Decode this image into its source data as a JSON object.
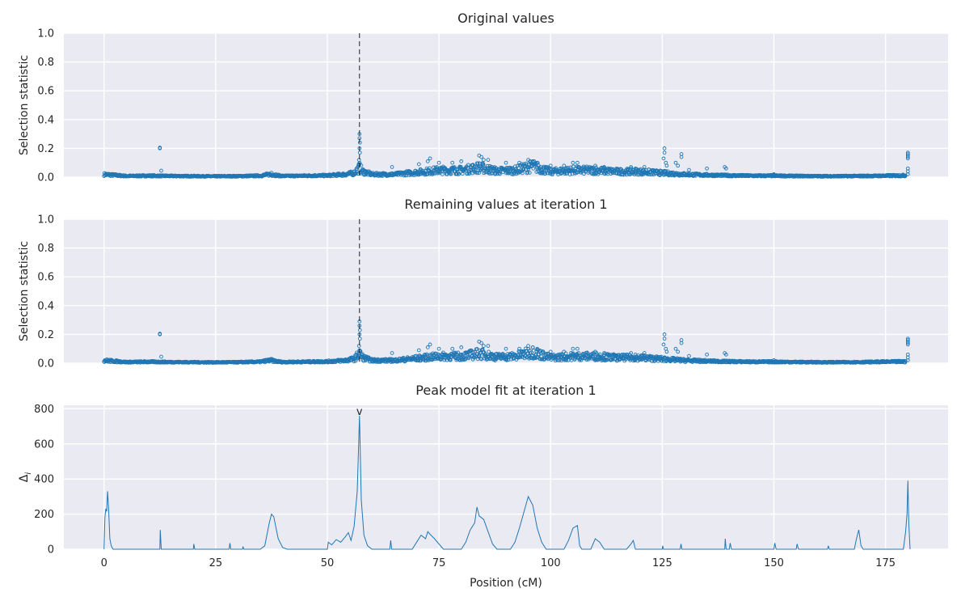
{
  "chart_data": [
    {
      "type": "scatter",
      "title": "Original values",
      "ylabel": "Selection statistic",
      "xlabel": "",
      "xlim": [
        -9,
        189
      ],
      "ylim": [
        0,
        1.0
      ],
      "yticks": [
        "0.0",
        "0.2",
        "0.4",
        "0.6",
        "0.8",
        "1.0"
      ],
      "xticks": [
        "0",
        "25",
        "50",
        "75",
        "100",
        "125",
        "150",
        "175"
      ],
      "grid": true,
      "marker_color": "#1f77b4",
      "vline_x": 57.2,
      "baseline": [
        [
          0,
          0.02
        ],
        [
          5,
          0.008
        ],
        [
          10,
          0.01
        ],
        [
          15,
          0.008
        ],
        [
          20,
          0.007
        ],
        [
          25,
          0.006
        ],
        [
          30,
          0.007
        ],
        [
          35,
          0.01
        ],
        [
          37,
          0.02
        ],
        [
          40,
          0.008
        ],
        [
          45,
          0.01
        ],
        [
          50,
          0.012
        ],
        [
          54,
          0.02
        ],
        [
          56,
          0.03
        ],
        [
          57.2,
          0.07
        ],
        [
          58,
          0.04
        ],
        [
          60,
          0.02
        ],
        [
          63,
          0.02
        ],
        [
          65,
          0.02
        ],
        [
          70,
          0.035
        ],
        [
          75,
          0.05
        ],
        [
          80,
          0.05
        ],
        [
          84,
          0.07
        ],
        [
          88,
          0.045
        ],
        [
          92,
          0.05
        ],
        [
          96,
          0.08
        ],
        [
          100,
          0.04
        ],
        [
          105,
          0.05
        ],
        [
          110,
          0.05
        ],
        [
          115,
          0.04
        ],
        [
          120,
          0.04
        ],
        [
          125,
          0.03
        ],
        [
          130,
          0.02
        ],
        [
          135,
          0.015
        ],
        [
          140,
          0.012
        ],
        [
          145,
          0.01
        ],
        [
          150,
          0.01
        ],
        [
          155,
          0.008
        ],
        [
          160,
          0.007
        ],
        [
          165,
          0.007
        ],
        [
          170,
          0.008
        ],
        [
          175,
          0.01
        ],
        [
          179.5,
          0.012
        ]
      ],
      "outliers": [
        [
          12.5,
          0.2
        ],
        [
          12.5,
          0.205
        ],
        [
          12.8,
          0.045
        ],
        [
          37.5,
          0.03
        ],
        [
          57.2,
          0.3
        ],
        [
          57.2,
          0.27
        ],
        [
          57.3,
          0.24
        ],
        [
          57.2,
          0.2
        ],
        [
          57.3,
          0.17
        ],
        [
          57.1,
          0.12
        ],
        [
          57.2,
          0.09
        ],
        [
          64.5,
          0.07
        ],
        [
          70.5,
          0.09
        ],
        [
          73,
          0.13
        ],
        [
          72.5,
          0.11
        ],
        [
          75,
          0.1
        ],
        [
          78,
          0.1
        ],
        [
          80,
          0.11
        ],
        [
          84,
          0.15
        ],
        [
          84.5,
          0.14
        ],
        [
          85,
          0.12
        ],
        [
          86,
          0.12
        ],
        [
          90,
          0.1
        ],
        [
          93,
          0.1
        ],
        [
          95,
          0.12
        ],
        [
          96,
          0.11
        ],
        [
          97,
          0.1
        ],
        [
          100,
          0.08
        ],
        [
          103,
          0.08
        ],
        [
          105,
          0.1
        ],
        [
          106,
          0.1
        ],
        [
          110,
          0.08
        ],
        [
          112,
          0.07
        ],
        [
          118,
          0.07
        ],
        [
          119,
          0.06
        ],
        [
          121,
          0.07
        ],
        [
          125.5,
          0.2
        ],
        [
          125.5,
          0.17
        ],
        [
          125.3,
          0.13
        ],
        [
          125.8,
          0.1
        ],
        [
          126,
          0.08
        ],
        [
          128,
          0.1
        ],
        [
          129.3,
          0.16
        ],
        [
          129.3,
          0.14
        ],
        [
          128.5,
          0.08
        ],
        [
          131,
          0.05
        ],
        [
          135,
          0.06
        ],
        [
          139,
          0.07
        ],
        [
          139.3,
          0.06
        ],
        [
          150,
          0.02
        ],
        [
          155,
          0.01
        ],
        [
          180,
          0.17
        ],
        [
          180,
          0.16
        ],
        [
          180,
          0.15
        ],
        [
          180,
          0.14
        ],
        [
          180,
          0.13
        ],
        [
          180,
          0.06
        ],
        [
          180,
          0.04
        ],
        [
          180,
          0.02
        ]
      ]
    },
    {
      "type": "scatter",
      "title": "Remaining values at iteration 1",
      "ylabel": "Selection statistic",
      "xlabel": "",
      "xlim": [
        -9,
        189
      ],
      "ylim": [
        0,
        1.0
      ],
      "yticks": [
        "0.0",
        "0.2",
        "0.4",
        "0.6",
        "0.8",
        "1.0"
      ],
      "xticks": [
        "0",
        "25",
        "50",
        "75",
        "100",
        "125",
        "150",
        "175"
      ],
      "grid": true,
      "marker_color": "#1f77b4",
      "vline_x": 57.2,
      "baseline": [
        [
          0,
          0.02
        ],
        [
          5,
          0.008
        ],
        [
          10,
          0.01
        ],
        [
          15,
          0.008
        ],
        [
          20,
          0.007
        ],
        [
          25,
          0.006
        ],
        [
          30,
          0.007
        ],
        [
          35,
          0.01
        ],
        [
          37,
          0.02
        ],
        [
          40,
          0.008
        ],
        [
          45,
          0.01
        ],
        [
          50,
          0.012
        ],
        [
          54,
          0.02
        ],
        [
          56,
          0.03
        ],
        [
          57.2,
          0.07
        ],
        [
          58,
          0.04
        ],
        [
          60,
          0.02
        ],
        [
          63,
          0.02
        ],
        [
          65,
          0.02
        ],
        [
          70,
          0.035
        ],
        [
          75,
          0.05
        ],
        [
          80,
          0.05
        ],
        [
          84,
          0.07
        ],
        [
          88,
          0.045
        ],
        [
          92,
          0.05
        ],
        [
          96,
          0.08
        ],
        [
          100,
          0.04
        ],
        [
          105,
          0.05
        ],
        [
          110,
          0.05
        ],
        [
          115,
          0.04
        ],
        [
          120,
          0.04
        ],
        [
          125,
          0.03
        ],
        [
          130,
          0.02
        ],
        [
          135,
          0.015
        ],
        [
          140,
          0.012
        ],
        [
          145,
          0.01
        ],
        [
          150,
          0.01
        ],
        [
          155,
          0.008
        ],
        [
          160,
          0.007
        ],
        [
          165,
          0.007
        ],
        [
          170,
          0.008
        ],
        [
          175,
          0.01
        ],
        [
          179.5,
          0.012
        ]
      ],
      "outliers": [
        [
          12.5,
          0.2
        ],
        [
          12.5,
          0.205
        ],
        [
          12.8,
          0.045
        ],
        [
          37.5,
          0.03
        ],
        [
          57.2,
          0.29
        ],
        [
          57.2,
          0.26
        ],
        [
          57.3,
          0.23
        ],
        [
          57.2,
          0.2
        ],
        [
          57.3,
          0.17
        ],
        [
          57.1,
          0.12
        ],
        [
          57.2,
          0.09
        ],
        [
          64.5,
          0.07
        ],
        [
          70.5,
          0.09
        ],
        [
          73,
          0.13
        ],
        [
          72.5,
          0.11
        ],
        [
          75,
          0.1
        ],
        [
          78,
          0.1
        ],
        [
          80,
          0.11
        ],
        [
          84,
          0.15
        ],
        [
          84.5,
          0.14
        ],
        [
          85,
          0.12
        ],
        [
          86,
          0.12
        ],
        [
          90,
          0.1
        ],
        [
          93,
          0.1
        ],
        [
          95,
          0.12
        ],
        [
          96,
          0.11
        ],
        [
          97,
          0.1
        ],
        [
          100,
          0.08
        ],
        [
          103,
          0.08
        ],
        [
          105,
          0.1
        ],
        [
          106,
          0.1
        ],
        [
          110,
          0.08
        ],
        [
          112,
          0.07
        ],
        [
          118,
          0.07
        ],
        [
          119,
          0.06
        ],
        [
          121,
          0.07
        ],
        [
          125.5,
          0.2
        ],
        [
          125.5,
          0.17
        ],
        [
          125.3,
          0.13
        ],
        [
          125.8,
          0.1
        ],
        [
          126,
          0.08
        ],
        [
          128,
          0.1
        ],
        [
          129.3,
          0.16
        ],
        [
          129.3,
          0.14
        ],
        [
          128.5,
          0.08
        ],
        [
          131,
          0.05
        ],
        [
          135,
          0.06
        ],
        [
          139,
          0.07
        ],
        [
          139.3,
          0.06
        ],
        [
          150,
          0.02
        ],
        [
          155,
          0.01
        ],
        [
          180,
          0.17
        ],
        [
          180,
          0.16
        ],
        [
          180,
          0.15
        ],
        [
          180,
          0.14
        ],
        [
          180,
          0.13
        ],
        [
          180,
          0.06
        ],
        [
          180,
          0.04
        ],
        [
          180,
          0.02
        ]
      ]
    },
    {
      "type": "line",
      "title": "Peak model fit at iteration 1",
      "ylabel": "Δ",
      "ylabel_sub": "i",
      "xlabel": "Position (cM)",
      "xlim": [
        -9,
        189
      ],
      "ylim": [
        0,
        820
      ],
      "yticks": [
        "0",
        "200",
        "400",
        "600",
        "800"
      ],
      "xticks": [
        "0",
        "25",
        "50",
        "75",
        "100",
        "125",
        "150",
        "175"
      ],
      "grid": true,
      "line_color": "#1f77b4",
      "peak_marker": {
        "x": 57.2,
        "label": "v"
      },
      "curve": [
        [
          0,
          0
        ],
        [
          0.2,
          180
        ],
        [
          0.4,
          230
        ],
        [
          0.6,
          215
        ],
        [
          0.8,
          330
        ],
        [
          1.0,
          240
        ],
        [
          1.3,
          60
        ],
        [
          1.6,
          20
        ],
        [
          2,
          0
        ],
        [
          12.5,
          0
        ],
        [
          12.6,
          110
        ],
        [
          12.8,
          0
        ],
        [
          20,
          0
        ],
        [
          20.1,
          30
        ],
        [
          20.3,
          0
        ],
        [
          28,
          0
        ],
        [
          28.2,
          35
        ],
        [
          28.4,
          0
        ],
        [
          31,
          0
        ],
        [
          31.1,
          15
        ],
        [
          31.3,
          0
        ],
        [
          35,
          0
        ],
        [
          36,
          20
        ],
        [
          37,
          150
        ],
        [
          37.5,
          200
        ],
        [
          38,
          185
        ],
        [
          39,
          60
        ],
        [
          40,
          10
        ],
        [
          41,
          0
        ],
        [
          50,
          0
        ],
        [
          50.2,
          40
        ],
        [
          51,
          25
        ],
        [
          52,
          55
        ],
        [
          53,
          40
        ],
        [
          54,
          70
        ],
        [
          54.7,
          95
        ],
        [
          55.3,
          50
        ],
        [
          56,
          130
        ],
        [
          56.7,
          330
        ],
        [
          57.2,
          760
        ],
        [
          57.6,
          280
        ],
        [
          58.2,
          80
        ],
        [
          59,
          20
        ],
        [
          60,
          0
        ],
        [
          64,
          0
        ],
        [
          64.2,
          50
        ],
        [
          64.4,
          0
        ],
        [
          69,
          0
        ],
        [
          70,
          40
        ],
        [
          71,
          80
        ],
        [
          72,
          60
        ],
        [
          72.5,
          100
        ],
        [
          73,
          85
        ],
        [
          74,
          60
        ],
        [
          75,
          30
        ],
        [
          76,
          0
        ],
        [
          80,
          0
        ],
        [
          81,
          40
        ],
        [
          82,
          110
        ],
        [
          83,
          150
        ],
        [
          83.5,
          240
        ],
        [
          84,
          190
        ],
        [
          85,
          170
        ],
        [
          86,
          100
        ],
        [
          87,
          30
        ],
        [
          88,
          0
        ],
        [
          91,
          0
        ],
        [
          92,
          40
        ],
        [
          93,
          120
        ],
        [
          94,
          210
        ],
        [
          95,
          300
        ],
        [
          96,
          250
        ],
        [
          97,
          120
        ],
        [
          98,
          40
        ],
        [
          99,
          0
        ],
        [
          103,
          0
        ],
        [
          104,
          50
        ],
        [
          105,
          120
        ],
        [
          106,
          135
        ],
        [
          106.5,
          20
        ],
        [
          107,
          0
        ],
        [
          109,
          0
        ],
        [
          110,
          60
        ],
        [
          111,
          40
        ],
        [
          112,
          0
        ],
        [
          117,
          0
        ],
        [
          118,
          30
        ],
        [
          118.5,
          50
        ],
        [
          119,
          0
        ],
        [
          125,
          0
        ],
        [
          125.1,
          20
        ],
        [
          125.3,
          0
        ],
        [
          129,
          0
        ],
        [
          129.2,
          30
        ],
        [
          129.4,
          0
        ],
        [
          139,
          0
        ],
        [
          139.1,
          60
        ],
        [
          139.3,
          0
        ],
        [
          140,
          0
        ],
        [
          140.2,
          35
        ],
        [
          140.5,
          0
        ],
        [
          150,
          0
        ],
        [
          150.2,
          35
        ],
        [
          150.5,
          0
        ],
        [
          155,
          0
        ],
        [
          155.2,
          30
        ],
        [
          155.5,
          0
        ],
        [
          162,
          0
        ],
        [
          162.2,
          20
        ],
        [
          162.4,
          0
        ],
        [
          168,
          0
        ],
        [
          168.5,
          60
        ],
        [
          169,
          110
        ],
        [
          169.5,
          20
        ],
        [
          170,
          0
        ],
        [
          179,
          0
        ],
        [
          179.5,
          100
        ],
        [
          179.8,
          200
        ],
        [
          180,
          390
        ],
        [
          180.2,
          150
        ],
        [
          180.5,
          0
        ]
      ]
    }
  ]
}
